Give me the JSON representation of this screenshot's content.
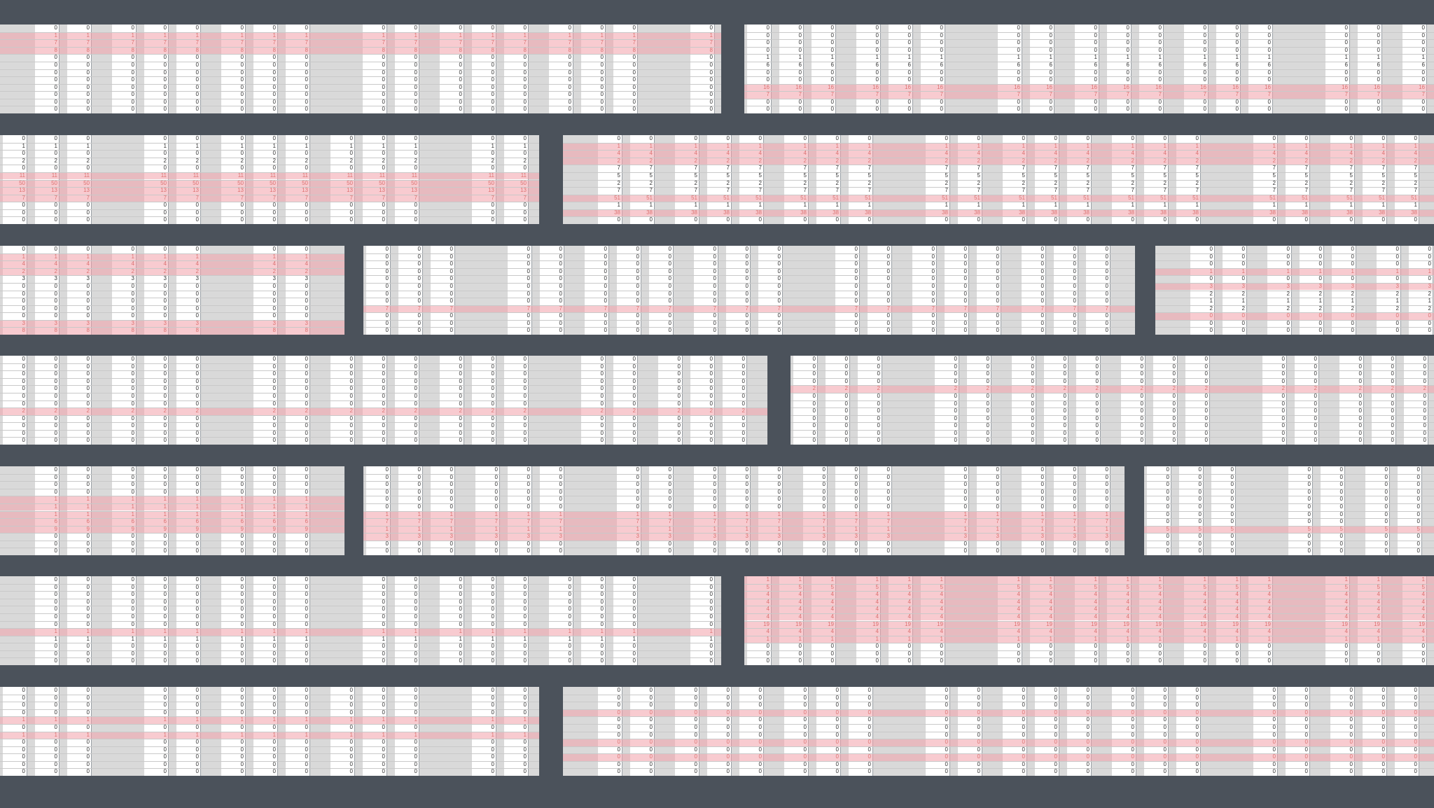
{
  "title": "",
  "colors": {
    "background": "#4b525b",
    "panel_gray": "#d9d9d9",
    "cell_white": "#ffffff",
    "highlight": "#f7c6cc",
    "red_text": "#c0392b"
  },
  "panels": [
    {
      "name": "panel-r1-a",
      "values": [
        "0",
        "1",
        "7",
        "8",
        "0",
        "0",
        "0",
        "0",
        "0",
        "0",
        "0",
        "0"
      ],
      "hl": [
        1,
        2,
        3
      ]
    },
    {
      "name": "panel-r1-b",
      "values": [
        "0",
        "0",
        "0",
        "0",
        "1",
        "6",
        "0",
        "0",
        "16",
        "7",
        "0",
        "0"
      ],
      "hl": [
        8,
        9
      ]
    },
    {
      "name": "panel-r2-a",
      "values": [
        "0",
        "1",
        "0",
        "2",
        "0",
        "11",
        "50",
        "13",
        "7",
        "0",
        "0",
        "0"
      ],
      "hl": [
        5,
        6,
        7,
        8
      ]
    },
    {
      "name": "panel-r2-b",
      "values": [
        "0",
        "1",
        "4",
        "2",
        "7",
        "5",
        "2",
        "7",
        "51",
        "1",
        "38",
        "0"
      ],
      "hl": [
        1,
        2,
        3,
        8,
        10
      ]
    },
    {
      "name": "panel-r3-a",
      "values": [
        "0",
        "1",
        "4",
        "2",
        "3",
        "0",
        "0",
        "0",
        "0",
        "0",
        "3",
        "8"
      ],
      "hl": [
        1,
        2,
        3,
        10,
        11
      ]
    },
    {
      "name": "panel-r3-b",
      "values": [
        "0",
        "0",
        "0",
        "0",
        "0",
        "0",
        "0",
        "0",
        "7",
        "0",
        "0",
        "0"
      ],
      "hl": [
        8
      ]
    },
    {
      "name": "panel-r3-c",
      "values": [
        "0",
        "0",
        "0",
        "1",
        "0",
        "3",
        "2",
        "1",
        "2",
        "0",
        "0",
        "0"
      ],
      "hl": [
        3,
        5,
        9
      ]
    },
    {
      "name": "panel-r4-a",
      "values": [
        "0",
        "0",
        "0",
        "0",
        "0",
        "0",
        "0",
        "2",
        "0",
        "0",
        "0",
        "0"
      ],
      "hl": [
        7
      ]
    },
    {
      "name": "panel-r4-b",
      "values": [
        "0",
        "0",
        "0",
        "0",
        "2",
        "0",
        "0",
        "0",
        "0",
        "0",
        "0",
        "0"
      ],
      "hl": [
        4
      ]
    },
    {
      "name": "panel-r5-a",
      "values": [
        "0",
        "0",
        "0",
        "0",
        "1",
        "1",
        "1",
        "6",
        "9",
        "0",
        "0",
        "0"
      ],
      "hl": [
        4,
        5,
        6,
        7,
        8
      ]
    },
    {
      "name": "panel-r5-b",
      "values": [
        "0",
        "0",
        "0",
        "0",
        "0",
        "0",
        "1",
        "7",
        "1",
        "3",
        "0",
        "0"
      ],
      "hl": [
        6,
        7,
        8,
        9
      ]
    },
    {
      "name": "panel-r5-c",
      "values": [
        "0",
        "0",
        "0",
        "0",
        "0",
        "0",
        "0",
        "0",
        "5",
        "0",
        "0",
        "0"
      ],
      "hl": [
        8
      ]
    },
    {
      "name": "panel-r6-a",
      "values": [
        "0",
        "0",
        "0",
        "0",
        "0",
        "0",
        "0",
        "1",
        "1",
        "0",
        "0",
        "0"
      ],
      "hl": [
        7
      ]
    },
    {
      "name": "panel-r6-b",
      "values": [
        "1",
        "5",
        "4",
        "4",
        "4",
        "4",
        "19",
        "4",
        "1",
        "0",
        "0",
        "0"
      ],
      "hl": [
        0,
        1,
        2,
        3,
        4,
        5,
        6,
        7,
        8
      ]
    },
    {
      "name": "panel-r7-a",
      "values": [
        "0",
        "0",
        "0",
        "0",
        "1",
        "0",
        "1",
        "0",
        "0",
        "0",
        "0",
        "0"
      ],
      "hl": [
        4,
        6
      ]
    },
    {
      "name": "panel-r7-b",
      "values": [
        "0",
        "0",
        "0",
        "0",
        "0",
        "0",
        "0",
        "0",
        "0",
        "0",
        "0",
        "0"
      ],
      "hl": [
        3,
        7,
        9
      ]
    }
  ]
}
